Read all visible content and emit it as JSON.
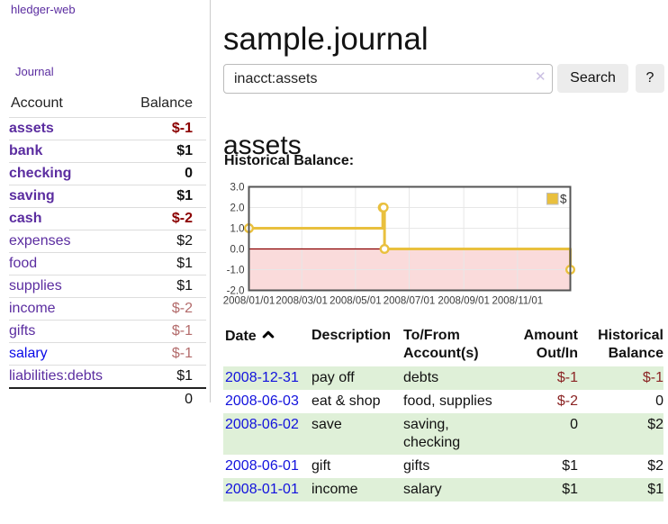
{
  "app": {
    "title": "hledger-web"
  },
  "nav": {
    "journal": "Journal"
  },
  "sidebar": {
    "headers": {
      "account": "Account",
      "balance": "Balance"
    },
    "rows": [
      {
        "name": "assets",
        "balance": "$-1"
      },
      {
        "name": "bank",
        "balance": "$1"
      },
      {
        "name": "checking",
        "balance": "0"
      },
      {
        "name": "saving",
        "balance": "$1"
      },
      {
        "name": "cash",
        "balance": "$-2"
      },
      {
        "name": "expenses",
        "balance": "$2"
      },
      {
        "name": "food",
        "balance": "$1"
      },
      {
        "name": "supplies",
        "balance": "$1"
      },
      {
        "name": "income",
        "balance": "$-2"
      },
      {
        "name": "gifts",
        "balance": "$-1"
      },
      {
        "name": "salary",
        "balance": "$-1"
      },
      {
        "name": "liabilities:debts",
        "balance": "$1"
      }
    ],
    "total": "0"
  },
  "main": {
    "title": "sample.journal",
    "search": {
      "value": "inacct:assets",
      "clear_icon": "✕",
      "button": "Search",
      "help_button": "?"
    },
    "account_heading": "assets",
    "chart_label": "Historical Balance:"
  },
  "chart_data": {
    "type": "line",
    "step": true,
    "series": [
      {
        "name": "$",
        "points": [
          [
            "2008-01-01",
            1
          ],
          [
            "2008-06-01",
            2
          ],
          [
            "2008-06-02",
            2
          ],
          [
            "2008-06-03",
            0
          ],
          [
            "2008-12-31",
            -1
          ]
        ]
      }
    ],
    "x_ticks": [
      "2008/01/01",
      "2008/03/01",
      "2008/05/01",
      "2008/07/01",
      "2008/09/01",
      "2008/11/01"
    ],
    "y_ticks": [
      3.0,
      2.0,
      1.0,
      0.0,
      -1.0,
      -2.0
    ],
    "xlim": [
      "2008-01-01",
      "2008-12-31"
    ],
    "ylim": [
      -2,
      3
    ],
    "legend": "$",
    "legend_position": "top-right",
    "grid": true,
    "colors": {
      "line": "#e9c03e",
      "negative_region": "#fadbdb",
      "zero_line": "#8b0000"
    }
  },
  "register": {
    "headers": {
      "date": "Date",
      "description": "Description",
      "account": "To/From Account(s)",
      "amount": "Amount Out/In",
      "balance": "Historical Balance",
      "sort_icon": "chevron-up"
    },
    "rows": [
      {
        "date": "2008-12-31",
        "description": "pay off",
        "accounts": "debts",
        "amount": "$-1",
        "balance": "$-1"
      },
      {
        "date": "2008-06-03",
        "description": "eat & shop",
        "accounts": "food, supplies",
        "amount": "$-2",
        "balance": "0"
      },
      {
        "date": "2008-06-02",
        "description": "save",
        "accounts": "saving, checking",
        "amount": "0",
        "balance": "$2"
      },
      {
        "date": "2008-06-01",
        "description": "gift",
        "accounts": "gifts",
        "amount": "$1",
        "balance": "$2"
      },
      {
        "date": "2008-01-01",
        "description": "income",
        "accounts": "salary",
        "amount": "$1",
        "balance": "$1"
      }
    ]
  }
}
